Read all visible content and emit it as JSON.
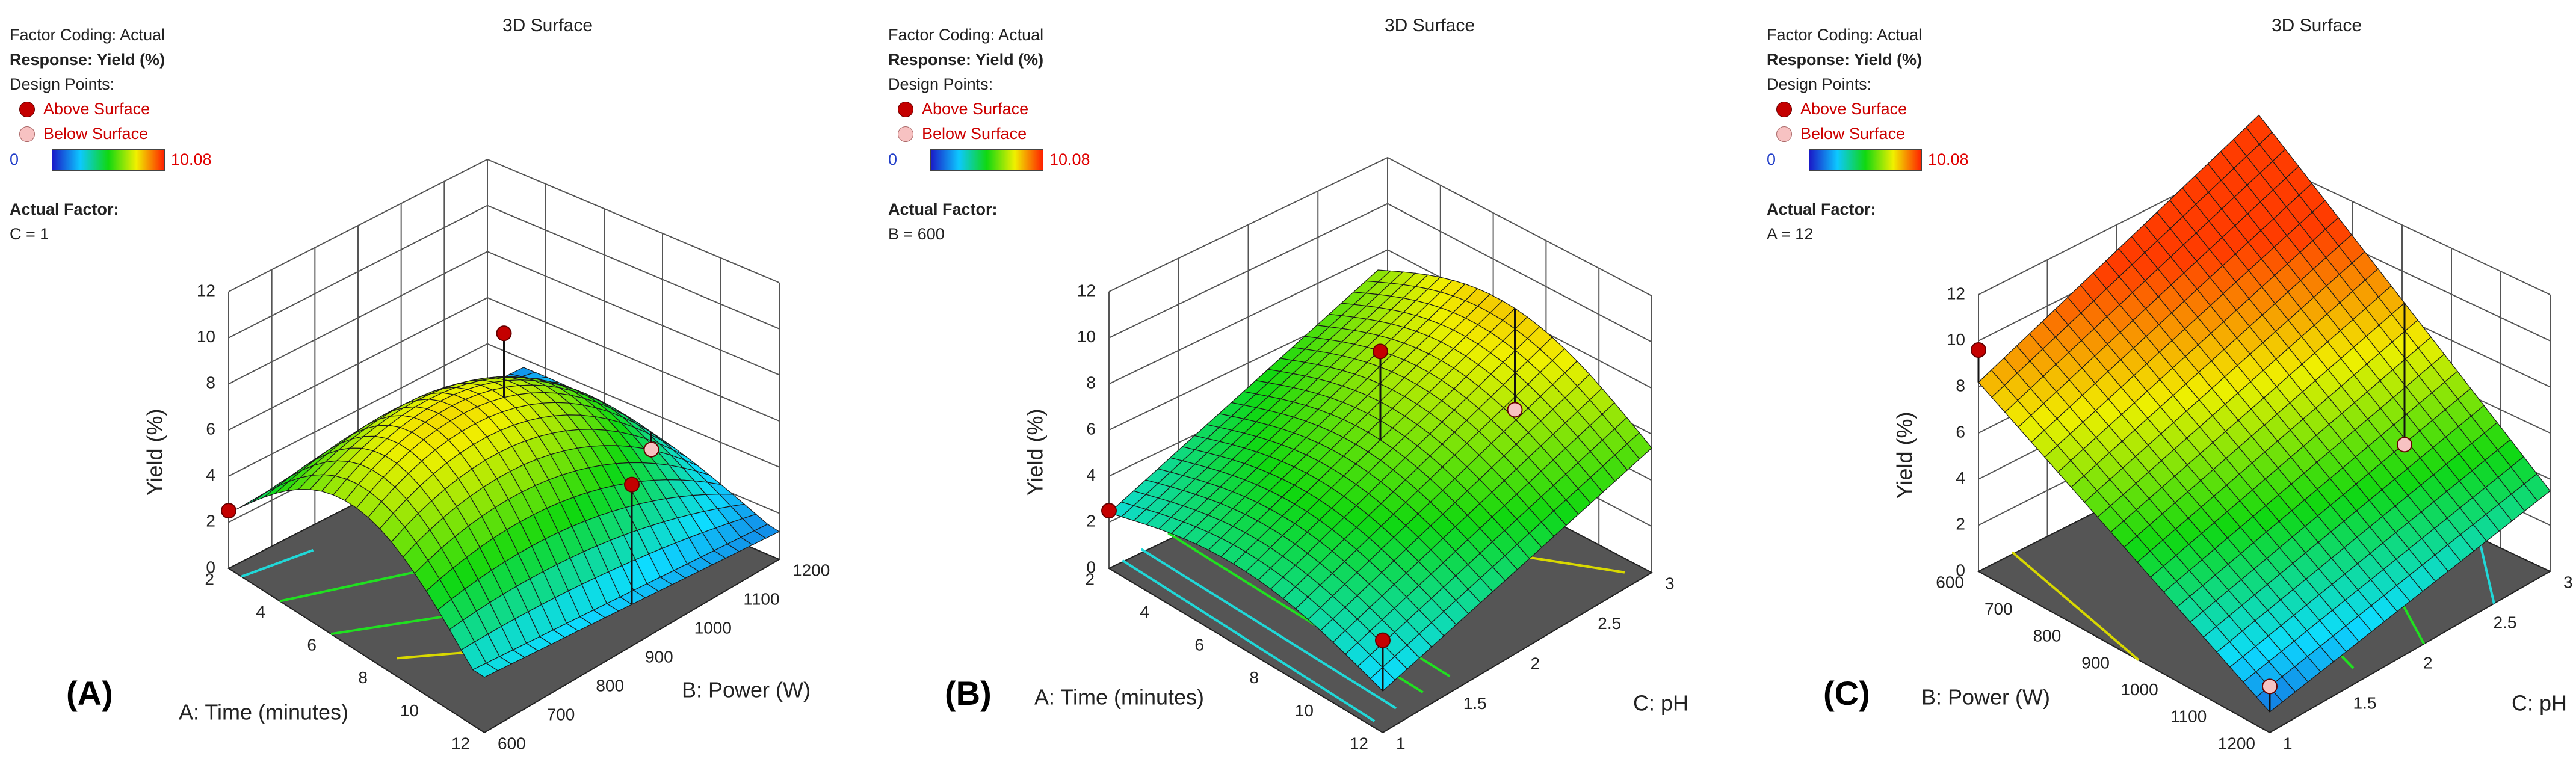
{
  "panels": [
    {
      "tag": "(A)",
      "title": "3D Surface",
      "factor_coding": "Factor Coding: Actual",
      "response": "Response: Yield (%)",
      "design_points": "Design Points:",
      "above": "Above Surface",
      "below": "Below Surface",
      "scale_min": "0",
      "scale_max": "10.08",
      "actual_factor_label": "Actual Factor:",
      "actual_factor_value": "C = 1"
    },
    {
      "tag": "(B)",
      "title": "3D Surface",
      "factor_coding": "Factor Coding: Actual",
      "response": "Response: Yield (%)",
      "design_points": "Design Points:",
      "above": "Above Surface",
      "below": "Below Surface",
      "scale_min": "0",
      "scale_max": "10.08",
      "actual_factor_label": "Actual Factor:",
      "actual_factor_value": "B = 600"
    },
    {
      "tag": "(C)",
      "title": "3D Surface",
      "factor_coding": "Factor Coding: Actual",
      "response": "Response: Yield (%)",
      "design_points": "Design Points:",
      "above": "Above Surface",
      "below": "Below Surface",
      "scale_min": "0",
      "scale_max": "10.08",
      "actual_factor_label": "Actual Factor:",
      "actual_factor_value": "A = 12"
    }
  ],
  "chart_data": [
    {
      "type": "surface3d",
      "title": "3D Surface",
      "xlabel": "A: Time (minutes)",
      "ylabel": "B: Power (W)",
      "zlabel": "Yield (%)",
      "x_ticks": [
        "2",
        "4",
        "6",
        "8",
        "10",
        "12"
      ],
      "y_ticks": [
        "600",
        "700",
        "800",
        "900",
        "1000",
        "1100",
        "1200"
      ],
      "z_ticks": [
        "0",
        "2",
        "4",
        "6",
        "8",
        "10",
        "12"
      ],
      "xlim": [
        2,
        12
      ],
      "ylim": [
        600,
        1200
      ],
      "zlim": [
        0,
        12
      ],
      "surface_corners": {
        "x2_y600": 2.5,
        "x12_y600": 4.0,
        "x2_y1200": 2.4,
        "x12_y1200": 2.6,
        "x7_y900": 7.8
      },
      "design_points": [
        {
          "x": 2,
          "y": 600,
          "z": 2.5,
          "type": "above"
        },
        {
          "x": 7,
          "y": 900,
          "z": 10.0,
          "type": "above"
        },
        {
          "x": 12,
          "y": 900,
          "z": 7.0,
          "type": "above"
        },
        {
          "x": 7,
          "y": 1200,
          "z": 1.2,
          "type": "below"
        }
      ],
      "color_scale": [
        0,
        10.08
      ]
    },
    {
      "type": "surface3d",
      "title": "3D Surface",
      "xlabel": "A: Time (minutes)",
      "ylabel": "C: pH",
      "zlabel": "Yield (%)",
      "x_ticks": [
        "2",
        "4",
        "6",
        "8",
        "10",
        "12"
      ],
      "y_ticks": [
        "1",
        "1.5",
        "2",
        "2.5",
        "3"
      ],
      "z_ticks": [
        "0",
        "2",
        "4",
        "6",
        "8",
        "10",
        "12"
      ],
      "xlim": [
        2,
        12
      ],
      "ylim": [
        1,
        3
      ],
      "zlim": [
        0,
        12
      ],
      "design_points": [
        {
          "x": 2,
          "y": 1,
          "z": 2.5,
          "type": "above"
        },
        {
          "x": 7,
          "y": 2,
          "z": 9.5,
          "type": "above"
        },
        {
          "x": 12,
          "y": 1,
          "z": 4.0,
          "type": "above"
        },
        {
          "x": 7,
          "y": 3,
          "z": 3.5,
          "type": "below"
        }
      ],
      "color_scale": [
        0,
        10.08
      ]
    },
    {
      "type": "surface3d",
      "title": "3D Surface",
      "xlabel": "B: Power (W)",
      "ylabel": "C: pH",
      "zlabel": "Yield (%)",
      "x_ticks": [
        "600",
        "700",
        "800",
        "900",
        "1000",
        "1100",
        "1200"
      ],
      "y_ticks": [
        "1",
        "1.5",
        "2",
        "2.5",
        "3"
      ],
      "z_ticks": [
        "0",
        "2",
        "4",
        "6",
        "8",
        "10",
        "12"
      ],
      "xlim": [
        600,
        1200
      ],
      "ylim": [
        1,
        3
      ],
      "zlim": [
        0,
        12
      ],
      "design_points": [
        {
          "x": 600,
          "y": 1,
          "z": 9.6,
          "type": "above"
        },
        {
          "x": 900,
          "y": 3,
          "z": 2.0,
          "type": "below"
        },
        {
          "x": 1200,
          "y": 1,
          "z": 2.0,
          "type": "below"
        }
      ],
      "color_scale": [
        0,
        10.08
      ]
    }
  ]
}
